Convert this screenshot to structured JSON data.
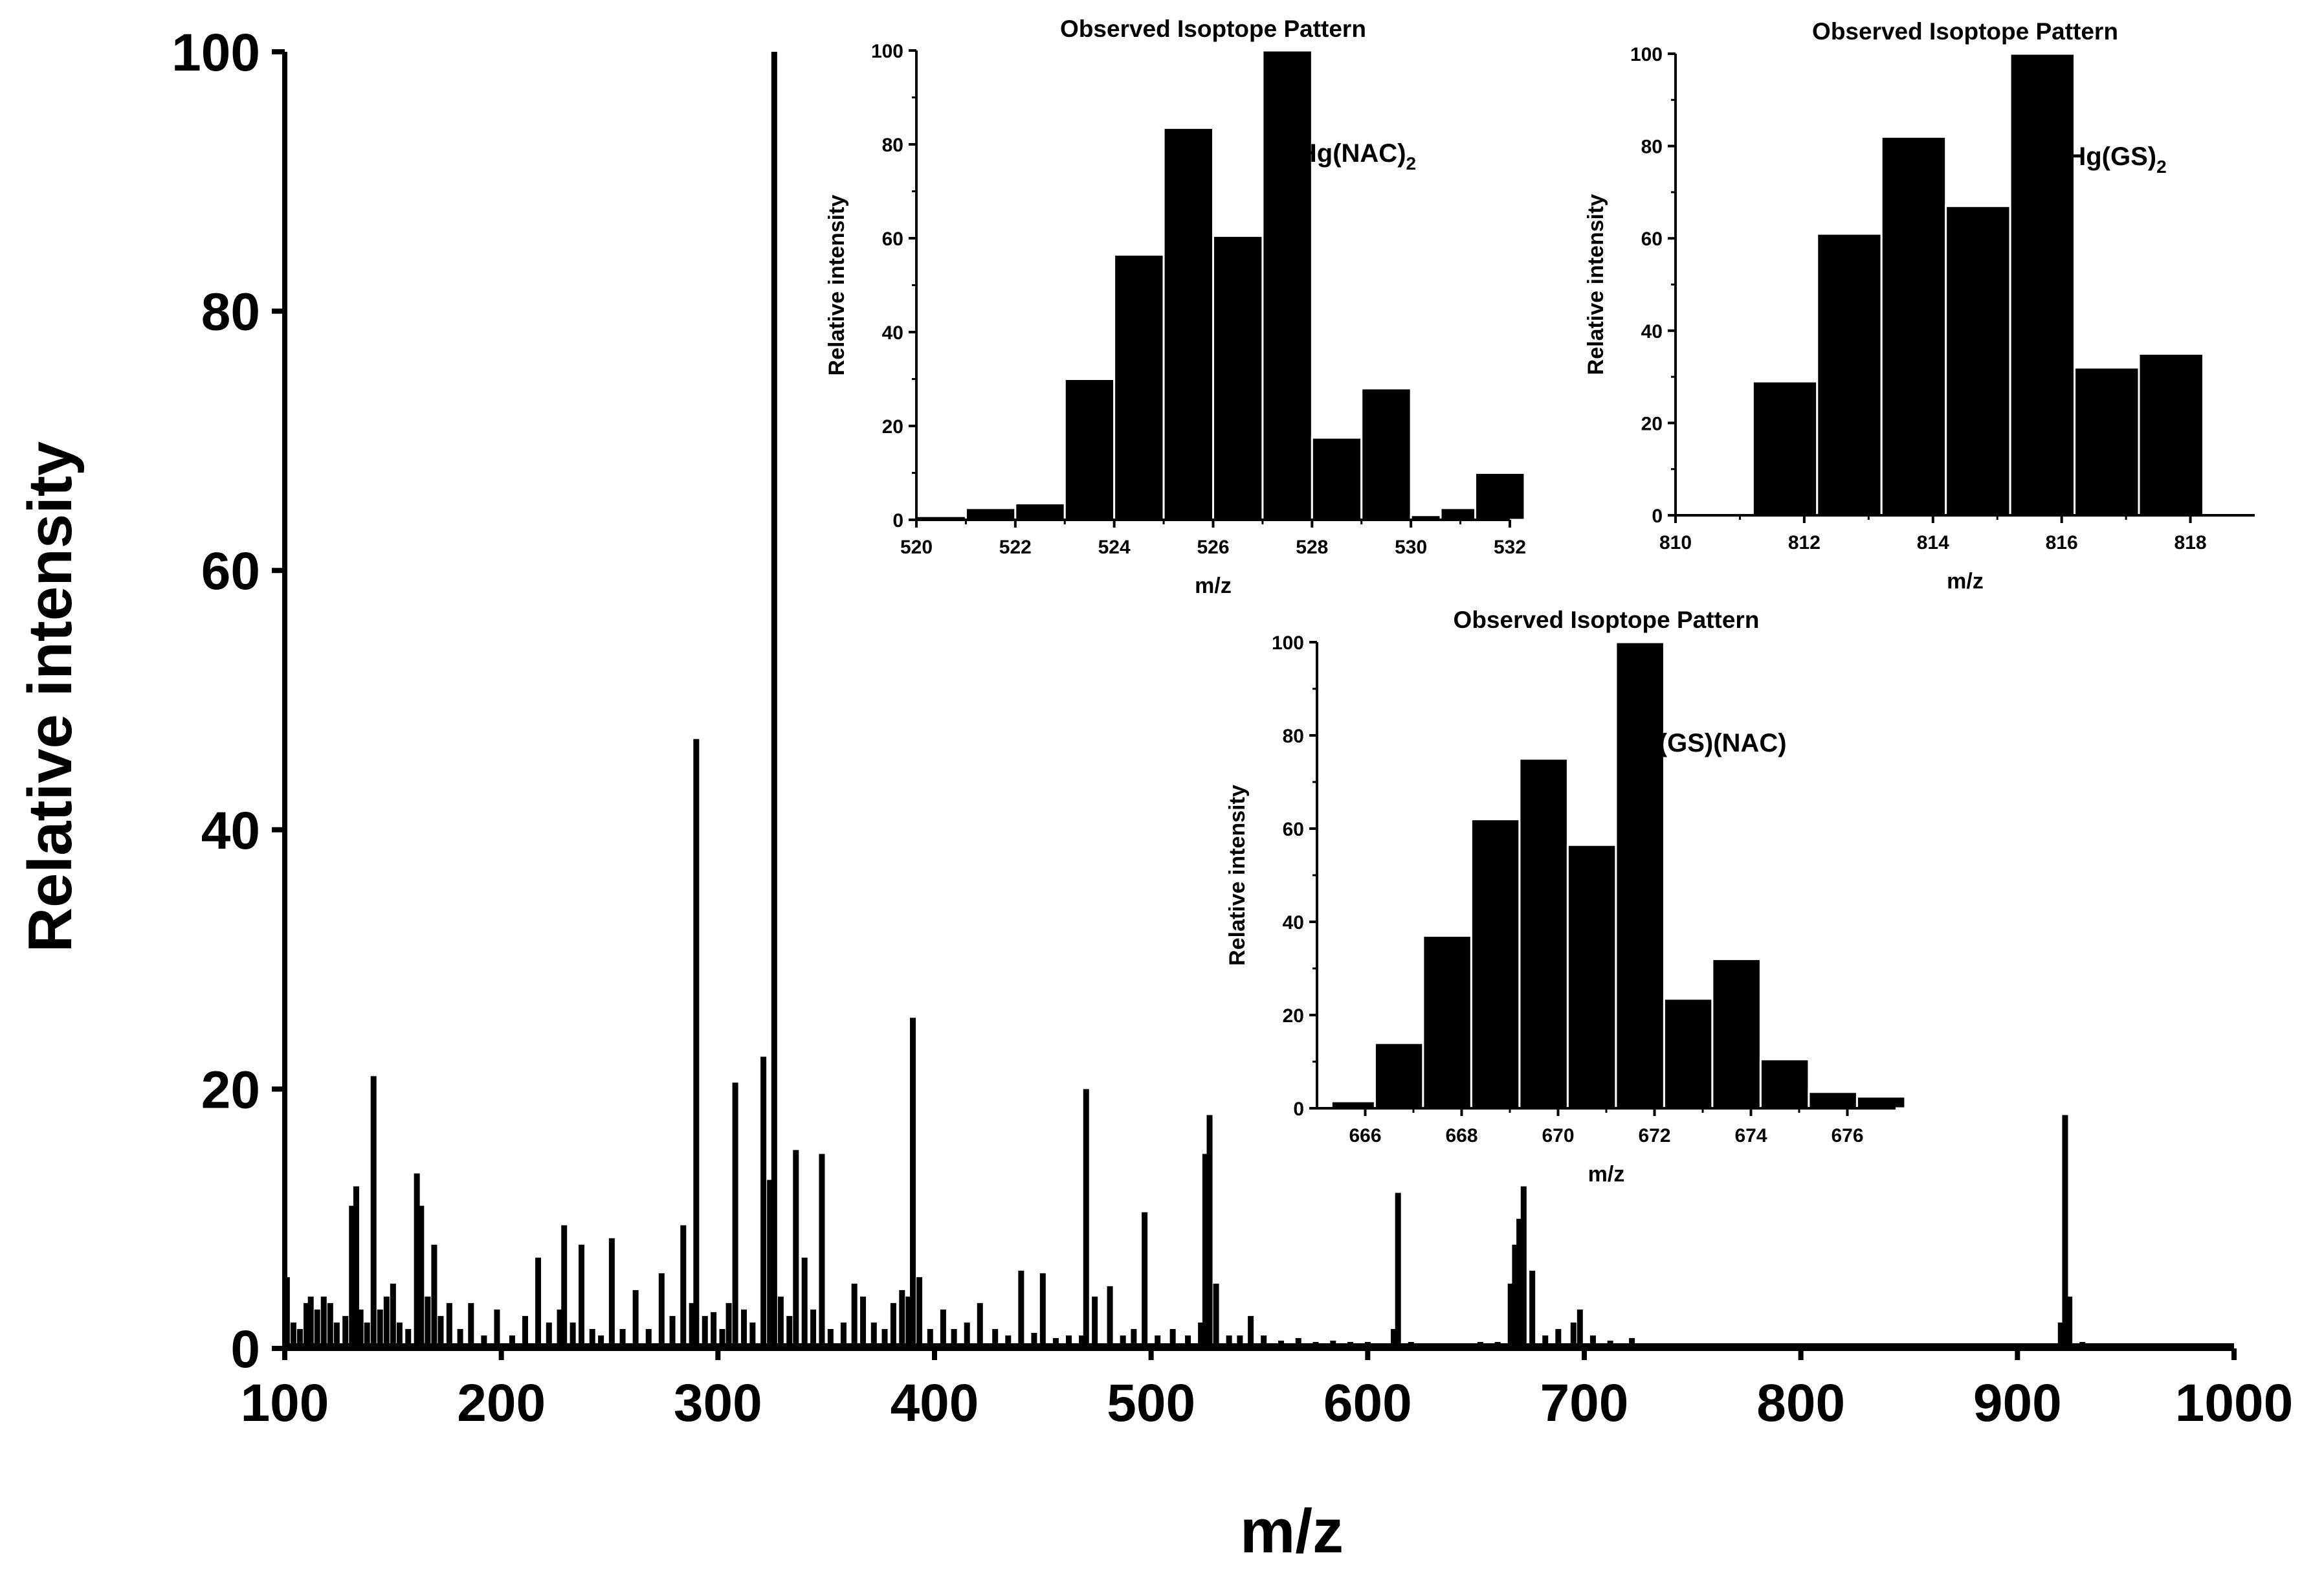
{
  "chart_data": [
    {
      "type": "bar",
      "name": "mass-spectrum",
      "xlabel": "m/z",
      "ylabel": "Relative intensity",
      "xlim": [
        100,
        1000
      ],
      "ylim": [
        0,
        100
      ],
      "x_ticks": [
        100,
        200,
        300,
        400,
        500,
        600,
        700,
        800,
        900,
        1000
      ],
      "y_ticks": [
        0,
        20,
        40,
        60,
        80,
        100
      ],
      "series": [
        {
          "name": "peaks",
          "x": [
            101,
            104,
            107,
            110,
            112,
            115,
            118,
            121,
            124,
            128,
            131,
            133,
            135,
            138,
            141,
            144,
            147,
            150,
            153,
            157,
            161,
            163,
            166,
            169,
            172,
            176,
            181,
            186,
            192,
            198,
            205,
            211,
            217,
            222,
            227,
            229,
            233,
            237,
            242,
            246,
            251,
            256,
            262,
            268,
            274,
            279,
            284,
            288,
            290,
            294,
            298,
            302,
            305,
            308,
            312,
            316,
            321,
            324,
            326,
            329,
            333,
            336,
            340,
            344,
            348,
            352,
            358,
            363,
            367,
            372,
            377,
            381,
            385,
            388,
            390,
            393,
            398,
            404,
            409,
            415,
            421,
            428,
            434,
            440,
            446,
            450,
            456,
            462,
            468,
            470,
            474,
            481,
            487,
            492,
            497,
            503,
            510,
            517,
            523,
            525,
            527,
            530,
            536,
            541,
            546,
            552,
            560,
            568,
            576,
            584,
            592,
            600,
            607,
            612,
            614,
            620,
            628,
            636,
            644,
            652,
            660,
            666,
            668,
            670,
            672,
            676,
            682,
            688,
            695,
            698,
            704,
            712,
            722,
            735,
            750,
            765,
            780,
            800,
            830,
            860,
            890,
            910,
            920,
            922,
            924,
            930,
            950,
            975,
            998
          ],
          "values": [
            5.5,
            2,
            1.5,
            3.5,
            4,
            3,
            4,
            3.5,
            2,
            2.5,
            11,
            12.5,
            3,
            2,
            21,
            3,
            4,
            5,
            2,
            1.5,
            13.5,
            11,
            4,
            8,
            2.5,
            3.5,
            1.5,
            3.5,
            1,
            3,
            1,
            2.5,
            7,
            2,
            3,
            9.5,
            2,
            8,
            1.5,
            1,
            8.5,
            1.5,
            4.5,
            1.5,
            5.8,
            2.5,
            9.5,
            3.5,
            47,
            2.5,
            2.8,
            1.5,
            3.5,
            20.5,
            3,
            2,
            22.5,
            13,
            100,
            4,
            2.5,
            15.3,
            7,
            3,
            15,
            1.5,
            2,
            5,
            4,
            2,
            1.5,
            3.5,
            4.5,
            4,
            25.5,
            5.5,
            1.5,
            3,
            1.5,
            2,
            3.5,
            1.5,
            1,
            6,
            1.2,
            5.8,
            0.8,
            1,
            1,
            20,
            4,
            4.8,
            1,
            1.5,
            10.5,
            1,
            1.5,
            1,
            2,
            15,
            18,
            5,
            1,
            1,
            2.5,
            1,
            0.6,
            0.8,
            0.5,
            0.6,
            0.5,
            0.5,
            0.4,
            1.5,
            12,
            0.5,
            0.4,
            0.4,
            0.4,
            0.5,
            0.5,
            5,
            8,
            10,
            12.5,
            6,
            1,
            1.5,
            2,
            3,
            1,
            0.6,
            0.8,
            0.4,
            0.3,
            0.3,
            0.3,
            0.3,
            0.2,
            0.2,
            0.2,
            0.2,
            2,
            18,
            4,
            0.5,
            0.2,
            0.2,
            0.2
          ]
        }
      ]
    },
    {
      "type": "bar",
      "name": "inset-hg-nac2",
      "title": "Observed Isoptope Pattern",
      "label_main": "Hg(NAC)",
      "label_sub": "2",
      "xlabel": "m/z",
      "ylabel": "Relative intensity",
      "xlim": [
        520,
        532
      ],
      "ylim": [
        0,
        100
      ],
      "x_ticks": [
        520,
        522,
        524,
        526,
        528,
        530,
        532
      ],
      "y_ticks": [
        0,
        20,
        40,
        60,
        80,
        100
      ],
      "bar_width": 1,
      "x": [
        520,
        521,
        522,
        523,
        524,
        525,
        526,
        527,
        528,
        529,
        530,
        530.6,
        531.3
      ],
      "values": [
        0.8,
        2.5,
        3.5,
        30,
        56.5,
        83.5,
        60.5,
        100,
        17.5,
        28,
        1,
        2.5,
        10
      ]
    },
    {
      "type": "bar",
      "name": "inset-hg-gs2",
      "title": "Observed Isoptope Pattern",
      "label_main": "Hg(GS)",
      "label_sub": "2",
      "xlabel": "m/z",
      "ylabel": "Relative intensity",
      "xlim": [
        810,
        819
      ],
      "ylim": [
        0,
        100
      ],
      "x_ticks": [
        810,
        812,
        814,
        816,
        818
      ],
      "y_ticks": [
        0,
        20,
        40,
        60,
        80,
        100
      ],
      "bar_width": 1,
      "x": [
        811.2,
        812.2,
        813.2,
        814.2,
        815.2,
        816.2,
        817.2
      ],
      "values": [
        29,
        61,
        82,
        67,
        100,
        32,
        35
      ]
    },
    {
      "type": "bar",
      "name": "inset-hg-gs-nac",
      "title": "Observed Isoptope Pattern",
      "label_main": "Hg(GS)(NAC)",
      "label_sub": "",
      "xlabel": "m/z",
      "ylabel": "Relative intensity",
      "xlim": [
        665,
        677
      ],
      "ylim": [
        0,
        100
      ],
      "x_ticks": [
        666,
        668,
        670,
        672,
        674,
        676
      ],
      "y_ticks": [
        0,
        20,
        40,
        60,
        80,
        100
      ],
      "bar_width": 1,
      "x": [
        665.3,
        666.2,
        667.2,
        668.2,
        669.2,
        670.2,
        671.2,
        672.2,
        673.2,
        674.2,
        675.2,
        676.2
      ],
      "values": [
        1.5,
        14,
        37,
        62,
        75,
        56.5,
        100,
        23.5,
        32,
        10.5,
        3.5,
        2.5
      ]
    }
  ]
}
